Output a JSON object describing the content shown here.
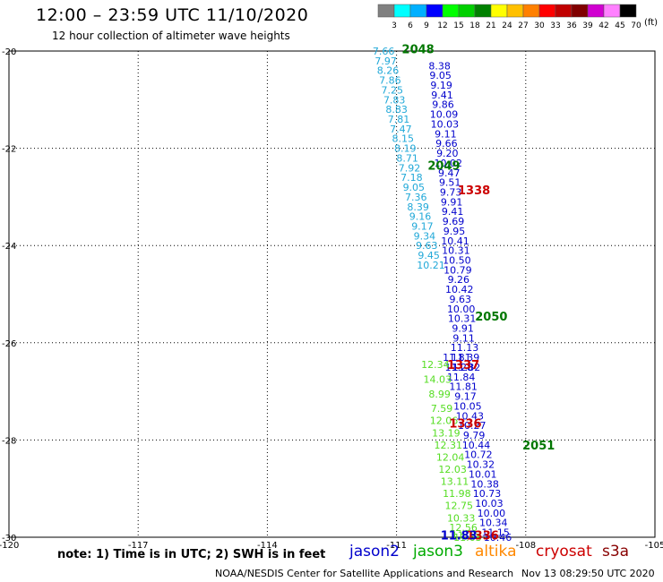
{
  "header": {
    "title": "12:00 – 23:59 UTC 11/10/2020",
    "subtitle": "12 hour collection of altimeter wave heights"
  },
  "footer": {
    "note": "note:  1) Time is in UTC;  2) SWH is in feet",
    "credit": "NOAA/NESDIS Center for Satellite Applications and Research",
    "timestamp": "Nov 13 08:29:50 UTC 2020"
  },
  "satellites": {
    "jason2": "jason2",
    "jason3": "jason3",
    "altika": "altika",
    "cryosat": "cryosat",
    "s3a": "s3a"
  },
  "colors": {
    "jason2": "#0000cc",
    "jason3": "#00aa00",
    "altika": "#ff8800",
    "cryosat": "#cc0000",
    "s3a": "#880000",
    "cyan_track": "#20a8d8",
    "green_track": "#55dd22",
    "time_green": "#007700"
  },
  "chart_data": {
    "type": "scatter",
    "xlabel": "",
    "ylabel": "",
    "xlim": [
      -120,
      -105
    ],
    "ylim": [
      -30,
      -20
    ],
    "x_ticks": [
      "-120",
      "-117",
      "-114",
      "-111",
      "-108",
      "-105"
    ],
    "y_ticks": [
      "-20",
      "-22",
      "-24",
      "-26",
      "-28",
      "-30"
    ],
    "grid": true,
    "colorbar": {
      "unit": "(ft)",
      "labels": [
        "3",
        "6",
        "9",
        "12",
        "15",
        "18",
        "21",
        "24",
        "27",
        "30",
        "33",
        "36",
        "39",
        "42",
        "45",
        "70"
      ],
      "colors": [
        "#808080",
        "#00ffff",
        "#00b0ff",
        "#0000ff",
        "#00ff00",
        "#00d000",
        "#008000",
        "#ffff00",
        "#ffc000",
        "#ff8000",
        "#ff0000",
        "#c00000",
        "#800000",
        "#d000d0",
        "#ff80ff",
        "#000000"
      ]
    },
    "series": [
      {
        "name": "jason2",
        "color": "#20a8d8",
        "x": [
          -111.3,
          -111.25,
          -111.2,
          -111.15,
          -111.1,
          -111.05,
          -111.0,
          -110.95,
          -110.9,
          -110.85,
          -110.8,
          -110.75,
          -110.7,
          -110.65,
          -110.6,
          -110.55,
          -110.5,
          -110.45,
          -110.4,
          -110.35,
          -110.3,
          -110.25,
          -110.2
        ],
        "y": [
          -20.0,
          -20.2,
          -20.4,
          -20.6,
          -20.8,
          -21.0,
          -21.2,
          -21.4,
          -21.6,
          -21.8,
          -22.0,
          -22.2,
          -22.4,
          -22.6,
          -22.8,
          -23.0,
          -23.2,
          -23.4,
          -23.6,
          -23.8,
          -24.0,
          -24.2,
          -24.4
        ],
        "values": [
          "7.66",
          "7.97",
          "8.26",
          "7.86",
          "7.25",
          "7.83",
          "8.83",
          "7.81",
          "7.47",
          "8.15",
          "8.19",
          "8.71",
          "7.92",
          "7.18",
          "9.05",
          "7.36",
          "8.39",
          "9.16",
          "9.17",
          "9.34",
          "9.63",
          "9.45",
          "10.21"
        ]
      },
      {
        "name": "jason3",
        "color": "#0000cc",
        "x": [
          -110.0,
          -109.98,
          -109.96,
          -109.94,
          -109.92,
          -109.9,
          -109.88,
          -109.86,
          -109.84,
          -109.82,
          -109.8,
          -109.78,
          -109.76,
          -109.74,
          -109.72,
          -109.7,
          -109.68,
          -109.66,
          -109.64,
          -109.62,
          -109.6,
          -109.58,
          -109.56,
          -109.54,
          -109.52,
          -109.5,
          -109.48,
          -109.46,
          -109.44,
          -109.42,
          -109.4,
          -109.38
        ],
        "y": [
          -20.3,
          -20.5,
          -20.7,
          -20.9,
          -21.1,
          -21.3,
          -21.5,
          -21.7,
          -21.9,
          -22.1,
          -22.3,
          -22.5,
          -22.7,
          -22.9,
          -23.1,
          -23.3,
          -23.5,
          -23.7,
          -23.9,
          -24.1,
          -24.3,
          -24.5,
          -24.7,
          -24.9,
          -25.1,
          -25.3,
          -25.5,
          -25.7,
          -25.9,
          -26.1,
          -26.3,
          -26.5
        ],
        "values": [
          "8.38",
          "9.05",
          "9.19",
          "9.41",
          "9.86",
          "10.09",
          "10.03",
          "9.11",
          "9.66",
          "9.20",
          "10.02",
          "9.47",
          "9.51",
          "9.73",
          "9.91",
          "9.41",
          "9.69",
          "9.95",
          "10.41",
          "10.31",
          "10.50",
          "10.79",
          "9.26",
          "10.42",
          "9.63",
          "10.00",
          "10.31",
          "9.91",
          "9.11",
          "11.13",
          "11.39",
          "11.82"
        ]
      },
      {
        "name": "altika",
        "color": "#0000cc",
        "x": [
          -109.6,
          -109.55,
          -109.5,
          -109.45,
          -109.4,
          -109.35,
          -109.3,
          -109.25,
          -109.2,
          -109.15,
          -109.1,
          -109.05,
          -109.0,
          -108.95,
          -108.9,
          -108.85,
          -108.8,
          -108.75,
          -108.7,
          -108.65
        ],
        "y": [
          -26.3,
          -26.5,
          -26.7,
          -26.9,
          -27.1,
          -27.3,
          -27.5,
          -27.7,
          -27.9,
          -28.1,
          -28.3,
          -28.5,
          -28.7,
          -28.9,
          -29.1,
          -29.3,
          -29.5,
          -29.7,
          -29.9,
          -30.0
        ],
        "values": [
          "11.81",
          "11.28",
          "11.84",
          "11.81",
          "9.17",
          "10.05",
          "10.43",
          "10.27",
          "9.79",
          "10.44",
          "10.72",
          "10.32",
          "10.01",
          "10.38",
          "10.73",
          "10.03",
          "10.00",
          "10.34",
          "11.15",
          "10.46"
        ]
      },
      {
        "name": "cryosat",
        "color": "#55dd22",
        "x": [
          -110.1,
          -110.05,
          -110.0,
          -109.95,
          -109.9,
          -109.85,
          -109.8,
          -109.75,
          -109.7,
          -109.65,
          -109.6,
          -109.55,
          -109.5,
          -109.45,
          -109.4,
          -109.35
        ],
        "y": [
          -26.45,
          -26.75,
          -27.05,
          -27.35,
          -27.6,
          -27.85,
          -28.1,
          -28.35,
          -28.6,
          -28.85,
          -29.1,
          -29.35,
          -29.6,
          -29.8,
          -29.95,
          -30.0
        ],
        "values": [
          "12.34",
          "14.03",
          "8.99",
          "7.59",
          "12.06",
          "13.19",
          "12.31",
          "12.04",
          "12.03",
          "13.11",
          "11.98",
          "12.75",
          "10.33",
          "12.56",
          "11.75",
          "11.63"
        ]
      }
    ],
    "annotations": [
      {
        "text": "2048",
        "x": -110.5,
        "y": -19.95,
        "color": "#007700"
      },
      {
        "text": "2049",
        "x": -109.9,
        "y": -22.35,
        "color": "#007700"
      },
      {
        "text": "1338",
        "x": -109.2,
        "y": -22.85,
        "color": "#cc0000"
      },
      {
        "text": "2050",
        "x": -108.8,
        "y": -25.45,
        "color": "#007700"
      },
      {
        "text": "1337",
        "x": -109.45,
        "y": -26.45,
        "color": "#cc0000"
      },
      {
        "text": "1336",
        "x": -109.4,
        "y": -27.65,
        "color": "#cc0000"
      },
      {
        "text": "2051",
        "x": -107.7,
        "y": -28.1,
        "color": "#007700"
      },
      {
        "text": "1336",
        "x": -109.0,
        "y": -29.95,
        "color": "#cc0000"
      },
      {
        "text": "11.83",
        "x": -109.55,
        "y": -29.95,
        "color": "#0000cc"
      }
    ]
  }
}
